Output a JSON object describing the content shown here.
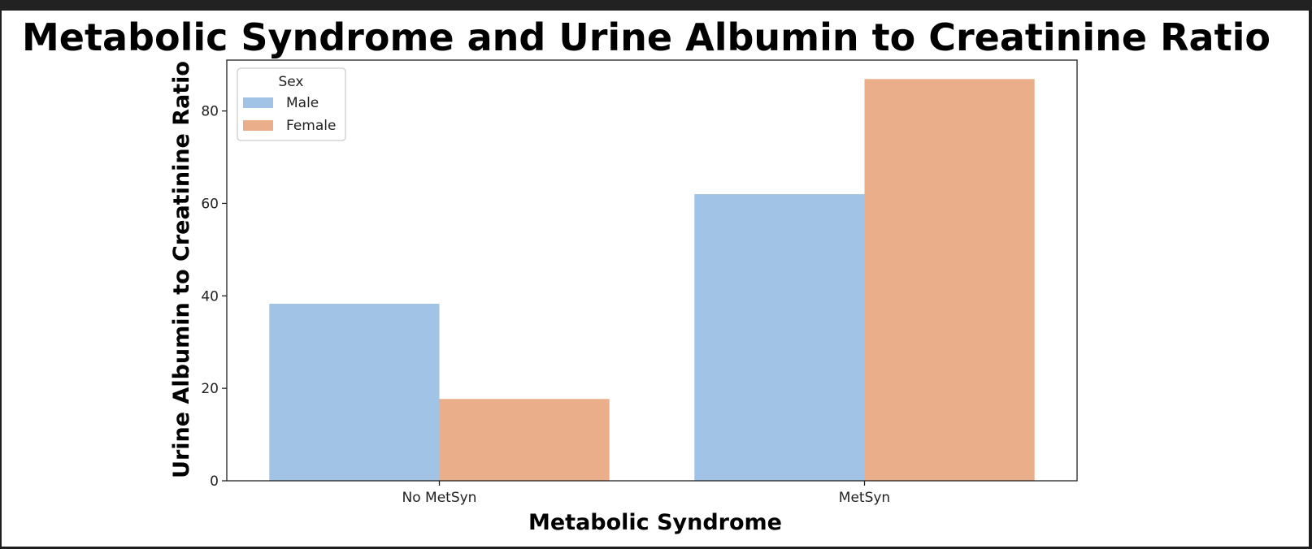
{
  "chart_data": {
    "type": "bar",
    "title": "Metabolic Syndrome and Urine Albumin to Creatinine Ratio",
    "xlabel": "Metabolic Syndrome",
    "ylabel": "Urine Albumin to Creatinine Ratio",
    "categories": [
      "No MetSyn",
      "MetSyn"
    ],
    "series": [
      {
        "name": "Male",
        "values": [
          38.3,
          62.0
        ],
        "color": "#a1c3e6"
      },
      {
        "name": "Female",
        "values": [
          17.7,
          86.9
        ],
        "color": "#ebae8a"
      }
    ],
    "ylim": [
      0,
      91
    ],
    "yticks": [
      0,
      20,
      40,
      60,
      80
    ],
    "legend": {
      "title": "Sex",
      "placement": "top-left"
    },
    "grid": false
  }
}
